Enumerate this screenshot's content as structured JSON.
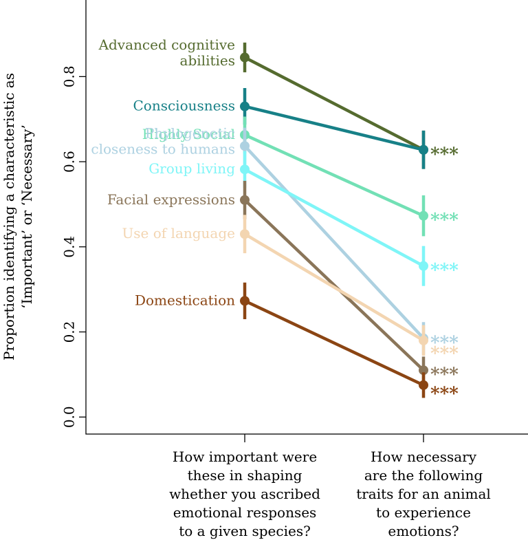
{
  "chart_data": {
    "type": "line",
    "title": "",
    "ylabel_lines": [
      "Proportion identifying a characteristic as",
      "‘Important’ or ‘Necessary’"
    ],
    "ylim": [
      -0.04,
      0.98
    ],
    "yticks": [
      0.0,
      0.2,
      0.4,
      0.6,
      0.8
    ],
    "ytick_labels": [
      "0.0",
      "0.2",
      "0.4",
      "0.6",
      "0.8"
    ],
    "x_categories": [
      [
        "How important were",
        "these in shaping",
        "whether you ascribed",
        "emotional responses",
        "to a given species?"
      ],
      [
        "How necessary",
        "are the following",
        "traits for an animal",
        "to experience",
        "emotions?"
      ]
    ],
    "significance_label": "***",
    "series": [
      {
        "name": "Advanced cognitive abilities",
        "label_lines": [
          "Advanced cognitive",
          "abilities"
        ],
        "color": "#556b2f",
        "values": [
          0.845,
          0.628
        ],
        "err": [
          0.035,
          0.045
        ],
        "sig_offset": 0.0
      },
      {
        "name": "Consciousness",
        "label_lines": [
          "Consciousness"
        ],
        "color": "#178087",
        "values": [
          0.73,
          0.628
        ],
        "err": [
          0.043,
          0.045
        ],
        "sig_offset": null
      },
      {
        "name": "Highly Social",
        "label_lines": [
          "Highly Social"
        ],
        "color": "#72e0b5",
        "values": [
          0.663,
          0.473
        ],
        "err": [
          0.043,
          0.048
        ],
        "sig_offset": 0.0
      },
      {
        "name": "Phylogenetic closeness to humans",
        "label_lines": [
          "Phylogenetic",
          "closeness to humans"
        ],
        "color": "#add1e1",
        "values": [
          0.637,
          0.185
        ],
        "err": [
          0.043,
          0.038
        ],
        "sig_offset": 0.0
      },
      {
        "name": "Group living",
        "label_lines": [
          "Group living"
        ],
        "color": "#7ff5f7",
        "values": [
          0.582,
          0.355
        ],
        "err": [
          0.043,
          0.047
        ],
        "sig_offset": 0.0
      },
      {
        "name": "Facial expressions",
        "label_lines": [
          "Facial expressions"
        ],
        "color": "#8a7559",
        "values": [
          0.51,
          0.11
        ],
        "err": [
          0.045,
          0.032
        ],
        "sig_offset": 0.0
      },
      {
        "name": "Use of language",
        "label_lines": [
          "Use of language"
        ],
        "color": "#f3d5b1",
        "values": [
          0.43,
          0.18
        ],
        "err": [
          0.045,
          0.036
        ],
        "sig_offset": -0.02
      },
      {
        "name": "Domestication",
        "label_lines": [
          "Domestication"
        ],
        "color": "#8b4513",
        "values": [
          0.273,
          0.075
        ],
        "err": [
          0.043,
          0.03
        ],
        "sig_offset": -0.01
      }
    ]
  }
}
